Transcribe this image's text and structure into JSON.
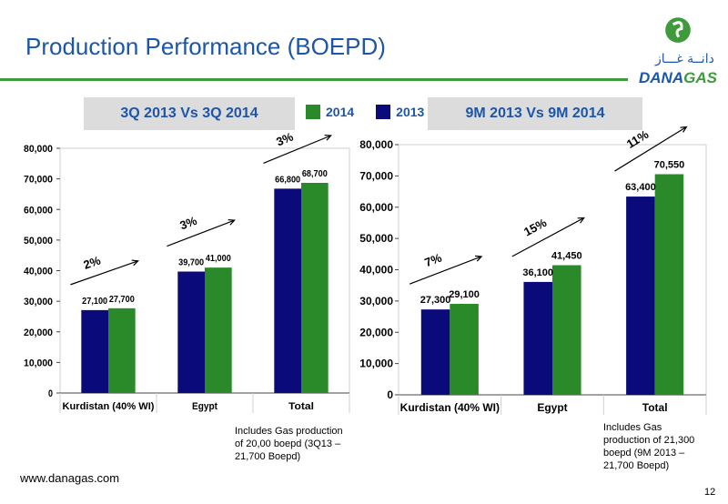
{
  "title": "Production Performance (BOEPD)",
  "logo": {
    "arabic": "دانــة غـــاز",
    "prefix": "DANA",
    "suffix": "GAS"
  },
  "headers": {
    "left": "3Q 2013 Vs 3Q 2014",
    "right": "9M 2013 Vs 9M 2014"
  },
  "legend": [
    {
      "name": "2014",
      "color": "#2a8a2a"
    },
    {
      "name": "2013",
      "color": "#0a0a7a"
    }
  ],
  "chart_data": [
    {
      "type": "bar",
      "categories": [
        "Kurdistan (40% WI)",
        "Egypt",
        "Total"
      ],
      "series": [
        {
          "name": "2013",
          "values": [
            27100,
            39700,
            66800
          ],
          "labels": [
            "27,100",
            "39,700",
            "66,800"
          ]
        },
        {
          "name": "2014",
          "values": [
            27700,
            41000,
            68700
          ],
          "labels": [
            "27,700",
            "41,000",
            "68,700"
          ]
        }
      ],
      "growth": [
        "2%",
        "3%",
        "3%"
      ],
      "ylim": [
        0,
        80000
      ],
      "yticks": [
        "0",
        "10,000",
        "20,000",
        "30,000",
        "40,000",
        "50,000",
        "60,000",
        "70,000",
        "80,000"
      ]
    },
    {
      "type": "bar",
      "categories": [
        "Kurdistan (40% WI)",
        "Egypt",
        "Total"
      ],
      "series": [
        {
          "name": "2013",
          "values": [
            27300,
            36100,
            63400
          ],
          "labels": [
            "27,300",
            "36,100",
            "63,400"
          ]
        },
        {
          "name": "2014",
          "values": [
            29100,
            41450,
            70550
          ],
          "labels": [
            "29,100",
            "41,450",
            "70,550"
          ]
        }
      ],
      "growth": [
        "7%",
        "15%",
        "11%"
      ],
      "ylim": [
        0,
        80000
      ],
      "yticks": [
        "0",
        "10,000",
        "20,000",
        "30,000",
        "40,000",
        "50,000",
        "60,000",
        "70,000",
        "80,000"
      ]
    }
  ],
  "notes": {
    "left": "Includes Gas production of 20,00 boepd (3Q13 – 21,700 Boepd)",
    "right": "Includes Gas production of 21,300 boepd (9M 2013 – 21,700 Boepd)"
  },
  "footer": {
    "website": "www.danagas.com",
    "page": "12"
  }
}
